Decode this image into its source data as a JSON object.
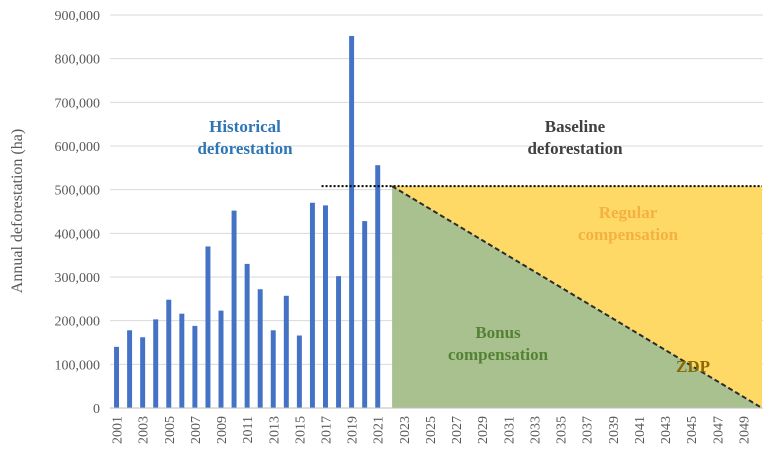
{
  "chart_data": {
    "type": "bar",
    "ylabel": "Annual deforestation (ha)",
    "xlabel": "",
    "ylim": [
      0,
      900000
    ],
    "y_ticks": [
      "0",
      "100,000",
      "200,000",
      "300,000",
      "400,000",
      "500,000",
      "600,000",
      "700,000",
      "800,000",
      "900,000"
    ],
    "x_tick_labels": [
      "2001",
      "2003",
      "2005",
      "2007",
      "2009",
      "2011",
      "2013",
      "2015",
      "2017",
      "2019",
      "2021",
      "2023",
      "2025",
      "2027",
      "2029",
      "2031",
      "2033",
      "2035",
      "2037",
      "2039",
      "2041",
      "2043",
      "2045",
      "2047",
      "2049"
    ],
    "x_range": [
      2001,
      2050
    ],
    "grid": true,
    "bar_color": "#4472c4",
    "categories": [
      "2001",
      "2002",
      "2003",
      "2004",
      "2005",
      "2006",
      "2007",
      "2008",
      "2009",
      "2010",
      "2011",
      "2012",
      "2013",
      "2014",
      "2015",
      "2016",
      "2017",
      "2018",
      "2019",
      "2020",
      "2021"
    ],
    "values": [
      140000,
      178000,
      162000,
      203000,
      248000,
      216000,
      188000,
      370000,
      223000,
      452000,
      330000,
      272000,
      178000,
      257000,
      166000,
      470000,
      464000,
      302000,
      852000,
      428000,
      556000
    ],
    "baseline": {
      "value": 508000,
      "from_year": 2017.2,
      "to_year": 2050,
      "style": "dotted"
    },
    "zdp_line": {
      "from_year": 2022.6,
      "from_value": 508000,
      "to_year": 2050,
      "to_value": 0,
      "style": "dashed"
    },
    "regions": [
      {
        "name": "Regular compensation",
        "color": "#ffd966"
      },
      {
        "name": "Bonus compensation",
        "color": "#a9c08f"
      }
    ],
    "annotations": [
      {
        "id": "historical",
        "lines": [
          "Historical",
          "deforestation"
        ],
        "color": "#2e75b6"
      },
      {
        "id": "baseline",
        "lines": [
          "Baseline",
          "deforestation"
        ],
        "color": "#404040"
      },
      {
        "id": "regular",
        "lines": [
          "Regular",
          "compensation"
        ],
        "color": "#f4b040"
      },
      {
        "id": "bonus",
        "lines": [
          "Bonus",
          "compensation"
        ],
        "color": "#548235"
      },
      {
        "id": "zdp",
        "lines": [
          "ZDP"
        ],
        "color": "#8a6a00"
      }
    ]
  }
}
